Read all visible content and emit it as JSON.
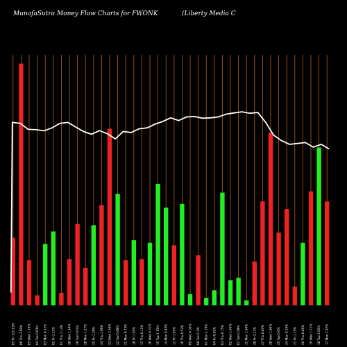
{
  "header": {
    "left_title": "MunafaSutra  Money Flow  Charts for FWONK",
    "right_title": "(Liberty Media  C"
  },
  "colors": {
    "background": "#000000",
    "gridline": "#b8601a",
    "up_bar": "#22ee22",
    "down_bar": "#ee2222",
    "price_line": "#ffffff"
  },
  "chart_data": {
    "type": "bar",
    "grid": true,
    "categories": [
      "05 Fri 115.13%",
      "06 Thu 2.69%",
      "05 Wed 1.76%",
      "04 Tue 0.63%",
      "03 Mon 0.52%",
      "02 Fri 2.21%",
      "01 Thu 1.13%",
      "30 Wed 1.44%",
      "29 Tue 0.61%",
      "28 Mon 1.27%",
      "25 Fri 1.29%",
      "24 Thu 1.96%",
      "23 Wed 2.40%",
      "22 Tue 0.08%",
      "21 Mon 0.73%",
      "18 Fri 1.03%",
      "17 Thu 0.11%",
      "16 Wed 0.31%",
      "15 Tue 1.75%",
      "14 Mon 0.85%",
      "11 Fri 1.03%",
      "10 Thu 0.52%",
      "09 Wed 0.36%",
      "08 Tue 0.3%",
      "07 Mon 2.19%",
      "04 Fri 0.83%",
      "03 Thu 0.75%",
      "02 Wed 1.45%",
      "01 Tue 0.29%",
      "31 Mon 1.66%",
      "28 Fri 2.11%",
      "27 Thu 0.87%",
      "26 Wed 1.85%",
      "25 Tue 0.6%",
      "24 Mon 0.26%",
      "21 Fri 1.15%",
      "20 Thu 0.81%",
      "19 Wed 1.11%",
      "18 Tue 2.05%",
      "17 Mon 2.02%"
    ],
    "colors": [
      "red",
      "red",
      "red",
      "red",
      "green",
      "green",
      "red",
      "red",
      "red",
      "red",
      "green",
      "red",
      "red",
      "green",
      "red",
      "green",
      "red",
      "green",
      "green",
      "green",
      "red",
      "green",
      "green",
      "red",
      "green",
      "green",
      "green",
      "green",
      "green",
      "green",
      "red",
      "red",
      "red",
      "red",
      "red",
      "red",
      "green",
      "red",
      "green",
      "red"
    ],
    "values": [
      54,
      193,
      36,
      8,
      49,
      59,
      10,
      37,
      65,
      30,
      64,
      80,
      141,
      89,
      36,
      52,
      37,
      50,
      97,
      78,
      48,
      81,
      9,
      40,
      6,
      12,
      90,
      20,
      22,
      4,
      35,
      83,
      138,
      58,
      77,
      15,
      50,
      91,
      126,
      83
    ],
    "price_line": [
      100,
      99.5,
      96.2,
      96.0,
      95.4,
      97.0,
      99.5,
      100.0,
      97.5,
      95.0,
      93.5,
      95.5,
      93.8,
      91.0,
      95.0,
      94.5,
      96.5,
      97.0,
      99.0,
      100.5,
      102.5,
      101.0,
      103.0,
      103.2,
      102.3,
      102.5,
      103.0,
      104.5,
      105.2,
      105.8,
      105.0,
      105.4,
      100.0,
      93.0,
      90.0,
      88.0,
      88.5,
      89.0,
      86.5,
      88.0,
      85.5
    ],
    "price_prepend": 7,
    "ylim": [
      0,
      200
    ],
    "price_ylim": [
      0,
      110
    ]
  }
}
